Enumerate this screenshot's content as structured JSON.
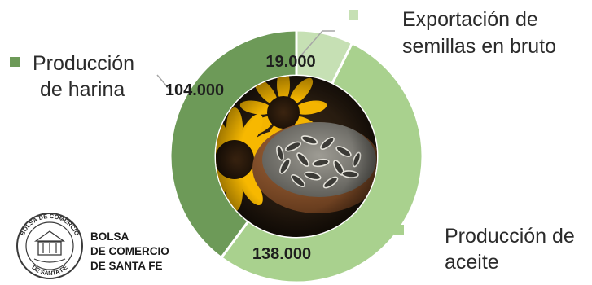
{
  "chart_data": {
    "type": "pie",
    "style": "donut",
    "categories": [
      "Exportación de semillas en bruto",
      "Producción de aceite",
      "Producción de harina"
    ],
    "values": [
      19000,
      138000,
      104000
    ],
    "value_labels": [
      "19.000",
      "138.000",
      "104.000"
    ],
    "legend_lines": [
      [
        "Exportación de",
        "semillas en bruto"
      ],
      [
        "Producción de",
        "aceite"
      ],
      [
        "Producción",
        "de harina"
      ]
    ],
    "center_image": "sunflower-and-seeds-photo",
    "colors": [
      "#c6e0b4",
      "#a9d18e",
      "#6d9a58"
    ]
  },
  "logo": {
    "name_lines": [
      "BOLSA",
      "DE COMERCIO",
      "DE SANTA FE"
    ],
    "seal_top_text": "BOLSA DE COMERCIO",
    "seal_bottom_text": "DE SANTA FE"
  }
}
